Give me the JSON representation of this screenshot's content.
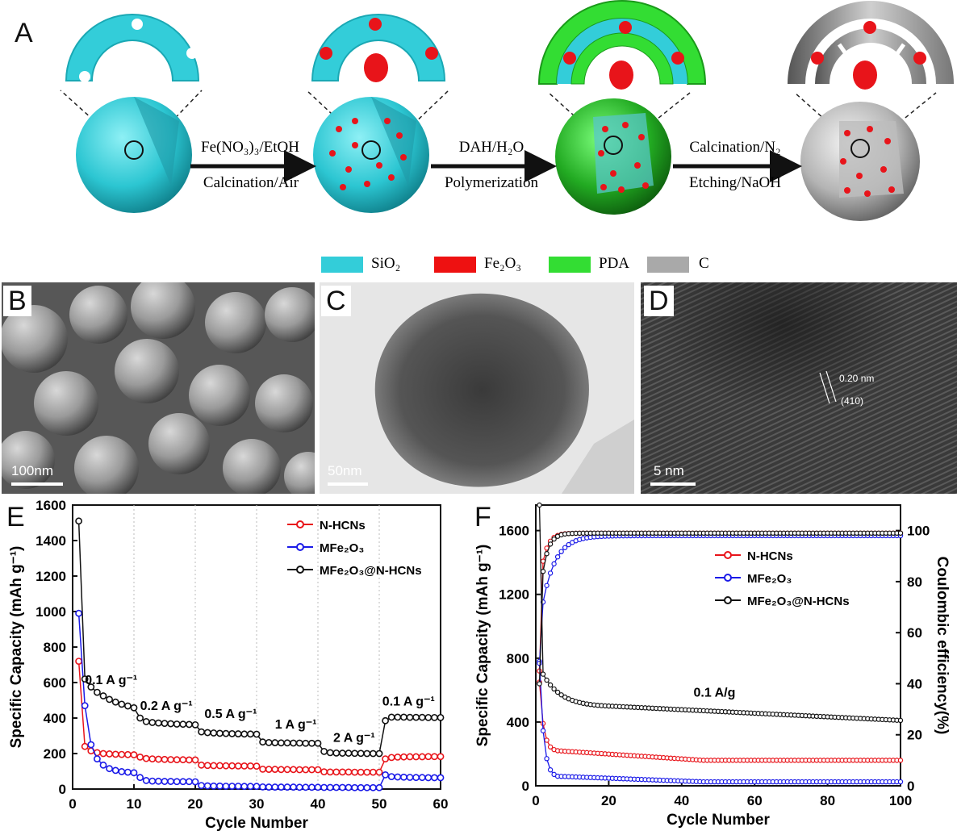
{
  "panels": {
    "a": "A",
    "b": "B",
    "c": "C",
    "d": "D",
    "e": "E",
    "f": "F"
  },
  "scheme": {
    "steps": [
      {
        "top": "Fe(NO₃)₃/EtOH",
        "bottom": "Calcination/Air"
      },
      {
        "top": "DAH/H₂O",
        "bottom": "Polymerization"
      },
      {
        "top": "Calcination/N₂",
        "bottom": "Etching/NaOH"
      }
    ],
    "legend": [
      {
        "label": "SiO₂",
        "color": "#33cdd9"
      },
      {
        "label": "Fe₂O₃",
        "color": "#ee1111"
      },
      {
        "label": "PDA",
        "color": "#33dd33"
      },
      {
        "label": "C",
        "color": "#a9a9a9"
      }
    ]
  },
  "micrographs": {
    "b_scale": "100nm",
    "c_scale": "50nm",
    "d_scale": "5 nm",
    "d_spacing": "0.20 nm",
    "d_plane": "(410)"
  },
  "colors": {
    "red": "#e8141a",
    "blue": "#1a1ae8",
    "black": "#111111"
  },
  "chart_data": [
    {
      "type": "scatter",
      "panel": "E",
      "xlabel": "Cycle Number",
      "ylabel": "Specific Capacity (mAh g⁻¹)",
      "xlim": [
        0,
        60
      ],
      "ylim": [
        0,
        1600
      ],
      "xticks": [
        "0",
        "10",
        "20",
        "30",
        "40",
        "50",
        "60"
      ],
      "yticks": [
        "0",
        "200",
        "400",
        "600",
        "800",
        "1000",
        "1200",
        "1400",
        "1600"
      ],
      "legend": [
        "N-HCNs",
        "MFe₂O₃",
        "MFe₂O₃@N-HCNs"
      ],
      "annotations": [
        {
          "text": "0.1 A g⁻¹",
          "x": 2,
          "y": 590
        },
        {
          "text": "0.2 A g⁻¹",
          "x": 11,
          "y": 445
        },
        {
          "text": "0.5 A g⁻¹",
          "x": 21.5,
          "y": 400
        },
        {
          "text": "1 A g⁻¹",
          "x": 33,
          "y": 340
        },
        {
          "text": "2 A g⁻¹",
          "x": 42.5,
          "y": 265
        },
        {
          "text": "0.1 A g⁻¹",
          "x": 50.5,
          "y": 470
        }
      ],
      "series": [
        {
          "name": "N-HCNs",
          "color": "#e8141a",
          "y": [
            720,
            240,
            215,
            205,
            200,
            198,
            196,
            195,
            194,
            193,
            180,
            172,
            170,
            168,
            167,
            166,
            165,
            165,
            164,
            164,
            135,
            133,
            132,
            132,
            131,
            131,
            130,
            130,
            130,
            129,
            112,
            111,
            111,
            110,
            110,
            110,
            109,
            109,
            109,
            109,
            97,
            96,
            96,
            96,
            96,
            95,
            95,
            95,
            95,
            95,
            170,
            178,
            180,
            181,
            182,
            182,
            182,
            183,
            183,
            183
          ]
        },
        {
          "name": "MFe₂O₃",
          "color": "#1a1ae8",
          "y": [
            990,
            470,
            250,
            170,
            135,
            115,
            105,
            98,
            95,
            92,
            65,
            48,
            45,
            44,
            43,
            43,
            42,
            42,
            42,
            41,
            20,
            18,
            17,
            17,
            16,
            16,
            16,
            15,
            15,
            15,
            12,
            11,
            11,
            11,
            11,
            11,
            10,
            10,
            10,
            10,
            9,
            9,
            9,
            9,
            9,
            8,
            8,
            8,
            8,
            8,
            80,
            70,
            68,
            67,
            66,
            65,
            65,
            64,
            64,
            64
          ]
        },
        {
          "name": "MFe₂O₃@N-HCNs",
          "color": "#111111",
          "y": [
            1510,
            620,
            575,
            545,
            525,
            505,
            490,
            478,
            468,
            458,
            400,
            380,
            375,
            372,
            370,
            368,
            366,
            365,
            364,
            362,
            322,
            318,
            316,
            314,
            313,
            312,
            311,
            310,
            310,
            309,
            265,
            262,
            261,
            260,
            260,
            259,
            259,
            258,
            258,
            258,
            212,
            205,
            203,
            202,
            202,
            201,
            201,
            200,
            200,
            200,
            385,
            405,
            405,
            405,
            404,
            404,
            404,
            403,
            403,
            403
          ]
        }
      ]
    },
    {
      "type": "scatter",
      "panel": "F",
      "xlabel": "Cycle Number",
      "ylabel": "Specific Capacity (mAh g⁻¹)",
      "y2label": "Coulombic efficiency(%)",
      "xlim": [
        0,
        100
      ],
      "ylim": [
        0,
        1760
      ],
      "y2lim": [
        0,
        110
      ],
      "xticks": [
        "0",
        "20",
        "40",
        "60",
        "80",
        "100"
      ],
      "yticks": [
        "0",
        "400",
        "800",
        "1200",
        "1600"
      ],
      "y2ticks": [
        "0",
        "20",
        "40",
        "60",
        "80",
        "100"
      ],
      "legend": [
        "N-HCNs",
        "MFe₂O₃",
        "MFe₂O₃@N-HCNs"
      ],
      "annotation": "0.1 A/g",
      "capacity": {
        "N-HCNs": {
          "start": 650,
          "plateau_1": 220,
          "plateau_end": 160
        },
        "MFe2O3": {
          "start": 780,
          "plateau_1": 60,
          "plateau_end": 25
        },
        "MFe2O3@N-HCNs": {
          "start": 1760,
          "second": 700,
          "at_20": 500,
          "at_100": 410
        }
      },
      "efficiency": {
        "N-HCNs": {
          "first": 45,
          "second": 88,
          "plateau": 99
        },
        "MFe2O3": {
          "first": 48,
          "second": 72,
          "plateau": 98
        },
        "MFe2O3@N-HCNs": {
          "first": 40,
          "second": 84,
          "plateau": 99
        }
      }
    }
  ]
}
